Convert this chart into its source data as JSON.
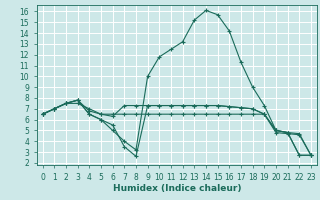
{
  "xlabel": "Humidex (Indice chaleur)",
  "background_color": "#cde8e8",
  "grid_color": "#ffffff",
  "line_color": "#1a6b5a",
  "marker": "+",
  "xlim": [
    -0.5,
    23.5
  ],
  "ylim": [
    1.8,
    16.6
  ],
  "xticks": [
    0,
    1,
    2,
    3,
    4,
    5,
    6,
    7,
    8,
    9,
    10,
    11,
    12,
    13,
    14,
    15,
    16,
    17,
    18,
    19,
    20,
    21,
    22,
    23
  ],
  "yticks": [
    2,
    3,
    4,
    5,
    6,
    7,
    8,
    9,
    10,
    11,
    12,
    13,
    14,
    15,
    16
  ],
  "lines": [
    [
      6.5,
      7.0,
      7.5,
      7.5,
      7.0,
      6.5,
      6.5,
      6.5,
      6.5,
      6.5,
      6.5,
      6.5,
      6.5,
      6.5,
      6.5,
      6.5,
      6.5,
      6.5,
      6.5,
      6.5,
      5.0,
      4.8,
      4.7,
      2.7
    ],
    [
      6.5,
      7.0,
      7.5,
      7.8,
      6.5,
      6.0,
      5.5,
      3.5,
      2.6,
      7.3,
      7.3,
      7.3,
      7.3,
      7.3,
      7.3,
      7.3,
      7.2,
      7.1,
      7.0,
      6.5,
      5.0,
      4.8,
      2.7,
      2.7
    ],
    [
      6.5,
      7.0,
      7.5,
      7.8,
      6.5,
      6.0,
      5.0,
      4.0,
      3.2,
      10.0,
      11.8,
      12.5,
      13.2,
      15.2,
      16.1,
      15.7,
      14.2,
      11.3,
      9.0,
      7.3,
      5.0,
      4.8,
      2.7,
      2.7
    ],
    [
      6.5,
      7.0,
      7.5,
      7.8,
      6.8,
      6.5,
      6.3,
      7.3,
      7.3,
      7.3,
      7.3,
      7.3,
      7.3,
      7.3,
      7.3,
      7.3,
      7.2,
      7.1,
      7.0,
      6.5,
      4.8,
      4.7,
      4.6,
      2.7
    ]
  ],
  "xlabel_fontsize": 6.5,
  "tick_fontsize": 5.5,
  "linewidth": 0.8,
  "markersize": 2.5
}
